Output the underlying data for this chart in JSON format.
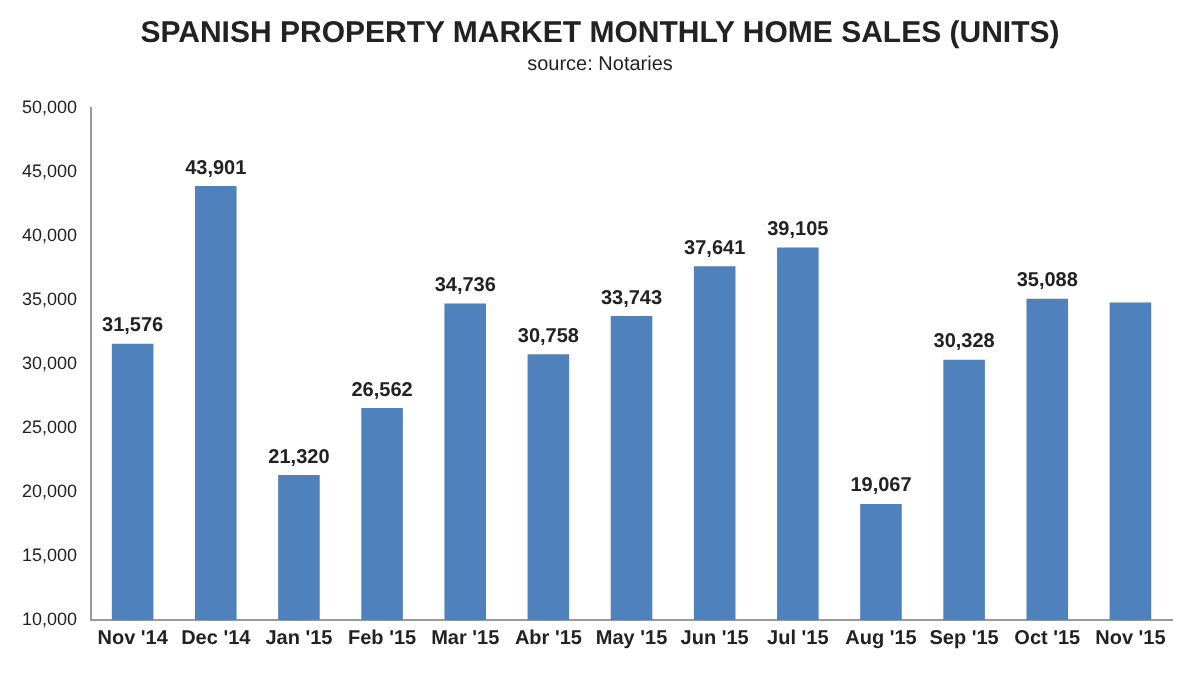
{
  "chart_data": {
    "type": "bar",
    "title": "SPANISH PROPERTY MARKET MONTHLY HOME SALES (UNITS)",
    "subtitle": "source: Notaries",
    "categories": [
      "Nov '14",
      "Dec '14",
      "Jan '15",
      "Feb '15",
      "Mar '15",
      "Abr '15",
      "May '15",
      "Jun '15",
      "Jul '15",
      "Aug '15",
      "Sep '15",
      "Oct '15",
      "Nov '15"
    ],
    "values": [
      31576,
      43901,
      21320,
      26562,
      34736,
      30758,
      33743,
      37641,
      39105,
      19067,
      30328,
      35088,
      34800
    ],
    "value_labels": [
      "31,576",
      "43,901",
      "21,320",
      "26,562",
      "34,736",
      "30,758",
      "33,743",
      "37,641",
      "39,105",
      "19,067",
      "30,328",
      "35,088",
      null
    ],
    "color": "#4f81bd",
    "ylim": [
      10000,
      50000
    ],
    "yticks": [
      {
        "value": 10000,
        "label": "10,000"
      },
      {
        "value": 15000,
        "label": "15,000"
      },
      {
        "value": 20000,
        "label": "20,000"
      },
      {
        "value": 25000,
        "label": "25,000"
      },
      {
        "value": 30000,
        "label": "30,000"
      },
      {
        "value": 35000,
        "label": "35,000"
      },
      {
        "value": 40000,
        "label": "40,000"
      },
      {
        "value": 45000,
        "label": "45,000"
      },
      {
        "value": 50000,
        "label": "50,000"
      }
    ],
    "grid": false
  }
}
